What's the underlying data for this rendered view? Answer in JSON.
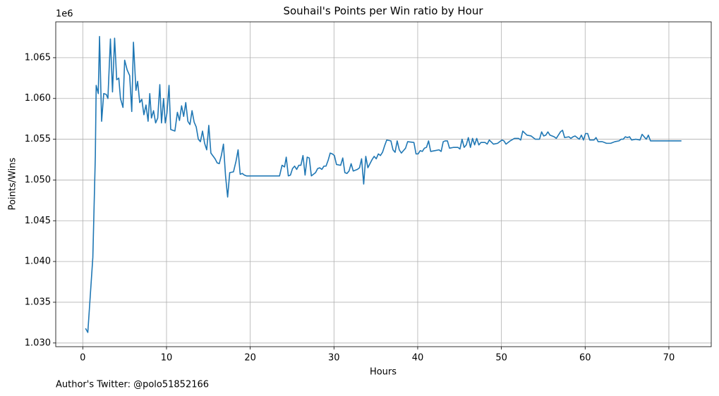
{
  "chart_data": {
    "type": "line",
    "title": "Souhail's Points per Win ratio by Hour",
    "xlabel": "Hours",
    "ylabel": "Points/Wins",
    "y_offset_label": "1e6",
    "footnote": "Author's Twitter: @polo51852166",
    "color": "#1f77b4",
    "grid": true,
    "xlim": [
      -3.23,
      75.06
    ],
    "ylim": [
      1029550,
      1069400
    ],
    "xticks": [
      0,
      10,
      20,
      30,
      40,
      50,
      60,
      70
    ],
    "yticks": [
      {
        "value": 1030000,
        "label": "1.030"
      },
      {
        "value": 1035000,
        "label": "1.035"
      },
      {
        "value": 1040000,
        "label": "1.040"
      },
      {
        "value": 1045000,
        "label": "1.045"
      },
      {
        "value": 1050000,
        "label": "1.050"
      },
      {
        "value": 1055000,
        "label": "1.055"
      },
      {
        "value": 1060000,
        "label": "1.060"
      },
      {
        "value": 1065000,
        "label": "1.065"
      }
    ],
    "x": [
      0.33,
      0.6,
      1.2,
      1.5,
      1.6,
      1.85,
      2.0,
      2.25,
      2.5,
      2.8,
      3.0,
      3.3,
      3.55,
      3.8,
      4.05,
      4.3,
      4.5,
      4.8,
      5.0,
      5.3,
      5.6,
      5.85,
      6.05,
      6.35,
      6.55,
      6.8,
      7.05,
      7.3,
      7.55,
      7.8,
      8.0,
      8.2,
      8.45,
      8.7,
      8.95,
      9.2,
      9.4,
      9.65,
      9.85,
      10.05,
      10.3,
      10.5,
      11.0,
      11.3,
      11.55,
      11.8,
      12.05,
      12.3,
      12.55,
      12.8,
      13.05,
      13.3,
      13.55,
      13.8,
      14.05,
      14.3,
      14.55,
      14.8,
      15.05,
      15.3,
      15.8,
      16.05,
      16.3,
      16.55,
      16.8,
      17.05,
      17.3,
      17.55,
      18.0,
      18.3,
      18.55,
      18.8,
      19.05,
      19.3,
      19.55,
      23.5,
      23.8,
      24.1,
      24.3,
      24.55,
      24.8,
      25.05,
      25.3,
      25.55,
      25.8,
      26.05,
      26.3,
      26.55,
      26.8,
      27.05,
      27.3,
      27.8,
      28.05,
      28.3,
      28.55,
      28.8,
      29.05,
      29.3,
      29.55,
      29.8,
      30.05,
      30.3,
      30.8,
      31.05,
      31.3,
      31.55,
      31.8,
      32.05,
      32.3,
      32.8,
      33.05,
      33.3,
      33.55,
      33.8,
      34.05,
      34.3,
      34.55,
      34.8,
      35.05,
      35.3,
      35.55,
      35.8,
      36.05,
      36.3,
      36.8,
      37.05,
      37.3,
      37.55,
      37.8,
      38.05,
      38.3,
      38.55,
      38.8,
      39.55,
      39.8,
      40.05,
      40.3,
      40.55,
      40.8,
      41.05,
      41.3,
      41.55,
      42.05,
      42.55,
      42.8,
      43.05,
      43.3,
      43.55,
      43.8,
      44.3,
      44.8,
      45.05,
      45.3,
      45.55,
      45.8,
      46.05,
      46.3,
      46.55,
      46.8,
      47.05,
      47.3,
      47.55,
      48.05,
      48.3,
      48.55,
      49.05,
      49.55,
      50.05,
      50.3,
      50.55,
      51.05,
      51.55,
      52.05,
      52.3,
      52.55,
      53.05,
      53.55,
      54.05,
      54.55,
      54.8,
      55.05,
      55.3,
      55.55,
      55.8,
      56.3,
      56.55,
      57.05,
      57.3,
      57.55,
      58.05,
      58.3,
      58.55,
      58.8,
      59.3,
      59.55,
      59.8,
      60.05,
      60.3,
      60.55,
      61.05,
      61.3,
      61.55,
      62.05,
      62.55,
      63.05,
      63.55,
      64.05,
      64.3,
      64.55,
      64.8,
      65.05,
      65.3,
      65.55,
      66.05,
      66.55,
      66.8,
      67.05,
      67.3,
      67.55,
      67.8,
      71.5
    ],
    "values": [
      1031800,
      1031300,
      1040500,
      1053000,
      1061600,
      1060600,
      1067600,
      1057200,
      1060600,
      1060500,
      1060000,
      1067300,
      1060800,
      1067400,
      1062300,
      1062500,
      1060000,
      1058900,
      1064700,
      1063500,
      1062800,
      1058400,
      1066900,
      1061000,
      1062100,
      1059500,
      1059900,
      1058000,
      1059200,
      1057200,
      1060600,
      1057600,
      1058500,
      1057000,
      1057600,
      1061700,
      1057000,
      1060000,
      1057000,
      1058200,
      1061600,
      1056200,
      1056000,
      1058300,
      1057300,
      1059100,
      1057800,
      1059500,
      1057200,
      1056800,
      1058500,
      1057100,
      1056500,
      1055000,
      1054700,
      1056000,
      1054500,
      1053700,
      1056700,
      1053300,
      1052600,
      1052100,
      1052000,
      1053000,
      1054400,
      1050500,
      1047900,
      1050900,
      1051000,
      1052300,
      1053700,
      1050700,
      1050800,
      1050600,
      1050500,
      1050500,
      1051800,
      1051600,
      1052800,
      1050500,
      1050600,
      1051400,
      1051700,
      1051300,
      1051800,
      1051800,
      1053000,
      1050600,
      1052800,
      1052700,
      1050500,
      1050900,
      1051400,
      1051500,
      1051300,
      1051700,
      1051700,
      1052400,
      1053300,
      1053200,
      1053000,
      1051900,
      1051800,
      1052700,
      1050900,
      1050800,
      1051100,
      1052000,
      1051100,
      1051300,
      1051500,
      1052600,
      1049500,
      1052900,
      1051500,
      1052000,
      1052500,
      1052900,
      1052600,
      1053200,
      1053000,
      1053400,
      1054200,
      1054900,
      1054800,
      1053700,
      1053400,
      1054800,
      1053700,
      1053300,
      1053600,
      1053900,
      1054700,
      1054600,
      1053200,
      1053200,
      1053600,
      1053500,
      1053900,
      1054000,
      1054800,
      1053500,
      1053600,
      1053700,
      1053500,
      1054700,
      1054800,
      1054800,
      1053900,
      1054000,
      1054000,
      1053800,
      1055000,
      1054000,
      1054300,
      1055200,
      1054000,
      1055100,
      1054300,
      1055100,
      1054300,
      1054600,
      1054600,
      1054400,
      1054900,
      1054400,
      1054500,
      1054900,
      1054800,
      1054400,
      1054800,
      1055100,
      1055100,
      1054900,
      1056000,
      1055500,
      1055400,
      1055000,
      1055000,
      1055900,
      1055400,
      1055500,
      1055900,
      1055500,
      1055300,
      1055100,
      1055900,
      1056100,
      1055200,
      1055300,
      1055100,
      1055300,
      1055400,
      1055000,
      1055500,
      1054900,
      1055700,
      1055700,
      1054900,
      1054900,
      1055200,
      1054700,
      1054700,
      1054500,
      1054500,
      1054700,
      1054800,
      1055000,
      1055000,
      1055300,
      1055200,
      1055300,
      1054900,
      1055000,
      1054900,
      1055600,
      1055300,
      1055000,
      1055500,
      1054800,
      1054800
    ]
  }
}
